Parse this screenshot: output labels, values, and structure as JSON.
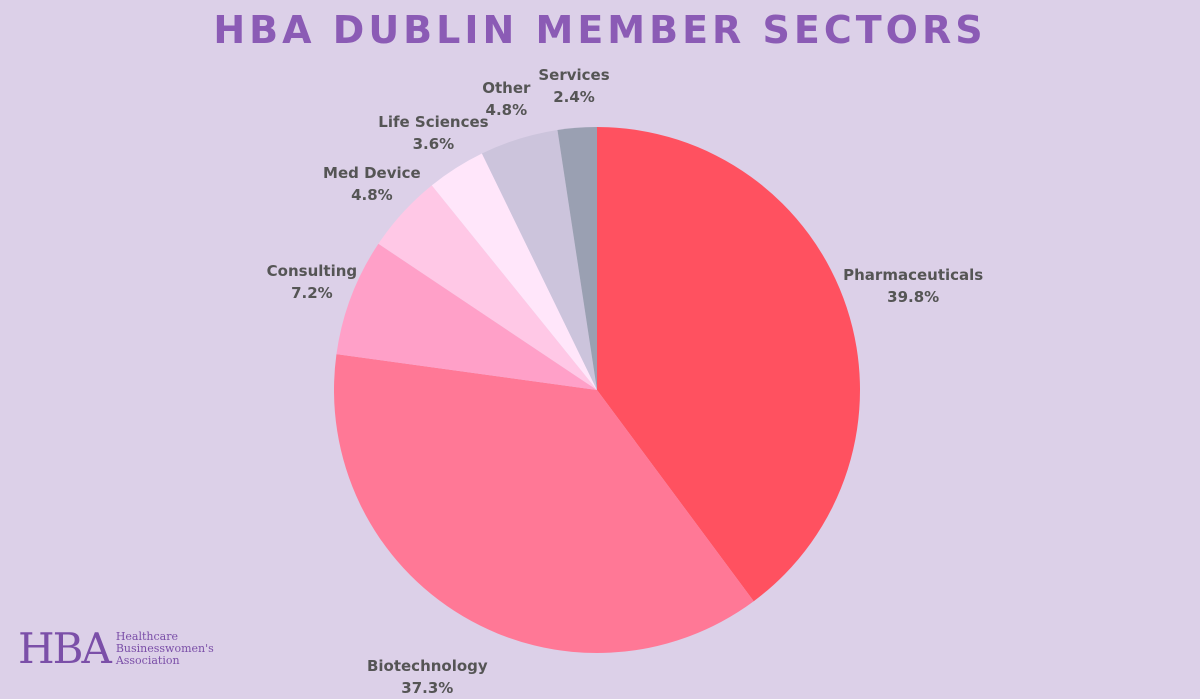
{
  "chart_data": {
    "type": "pie",
    "title": "HBA DUBLIN MEMBER SECTORS",
    "slices": [
      {
        "label": "Pharmaceuticals",
        "value": 39.8,
        "value_label": "39.8%",
        "color": "#ff5160"
      },
      {
        "label": "Biotechnology",
        "value": 37.3,
        "value_label": "37.3%",
        "color": "#ff7896"
      },
      {
        "label": "Consulting",
        "value": 7.2,
        "value_label": "7.2%",
        "color": "#ffa0c8"
      },
      {
        "label": "Med Device",
        "value": 4.8,
        "value_label": "4.8%",
        "color": "#ffc8e6"
      },
      {
        "label": "Life Sciences",
        "value": 3.6,
        "value_label": "3.6%",
        "color": "#ffe6fa"
      },
      {
        "label": "Other",
        "value": 4.8,
        "value_label": "4.8%",
        "color": "#ccc4dc"
      },
      {
        "label": "Services",
        "value": 2.4,
        "value_label": "2.4%",
        "color": "#9aa0b2"
      }
    ]
  },
  "logo": {
    "mark": "HBA",
    "line1": "Healthcare",
    "line2": "Businesswomen's",
    "line3": "Association"
  }
}
